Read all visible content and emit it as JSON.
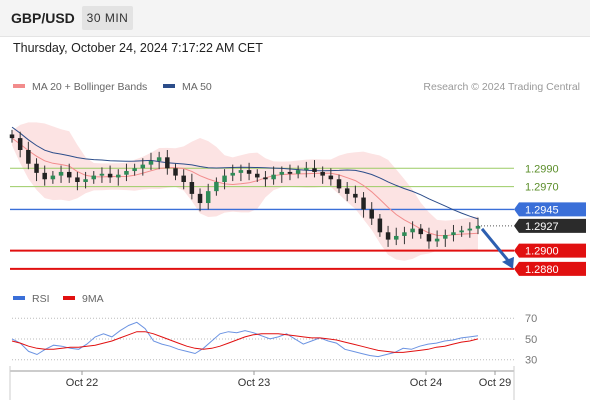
{
  "header": {
    "symbol": "GBP/USD",
    "timeframe": "30 MIN",
    "datetime": "Thursday, October 24, 2024 7:17:22 AM CET"
  },
  "chart_data": [
    {
      "type": "candlestick",
      "legend": [
        {
          "label": "MA 20 + Bollinger Bands",
          "color": "#f28c8c"
        },
        {
          "label": "MA 50",
          "color": "#2c4d8a"
        }
      ],
      "watermark": "Research © 2024 Trading Central",
      "ylim": [
        1.287,
        1.3045
      ],
      "x_ticks": [
        "Oct 22",
        "Oct 23",
        "Oct 24",
        "Oct 29"
      ],
      "horizontal_levels": [
        {
          "value": 1.299,
          "label": "1.2990",
          "color": "#9ccc65",
          "style": "green-line"
        },
        {
          "value": 1.297,
          "label": "1.2970",
          "color": "#9ccc65",
          "style": "green-line"
        },
        {
          "value": 1.2945,
          "label": "1.2945",
          "color": "#3a6fd8",
          "style": "blue-box"
        },
        {
          "value": 1.2927,
          "label": "1.2927",
          "color": "#2b2b2b",
          "style": "last-price"
        },
        {
          "value": 1.29,
          "label": "1.2900",
          "color": "#e11010",
          "style": "red-box"
        },
        {
          "value": 1.288,
          "label": "1.2880",
          "color": "#e11010",
          "style": "red-box"
        }
      ],
      "close_series": [
        1.3023,
        1.301,
        1.2995,
        1.2985,
        1.2978,
        1.2982,
        1.2986,
        1.298,
        1.2975,
        1.2978,
        1.2982,
        1.2984,
        1.298,
        1.2983,
        1.2987,
        1.299,
        1.2994,
        1.2998,
        1.3002,
        1.299,
        1.2982,
        1.2975,
        1.2962,
        1.2952,
        1.2965,
        1.2975,
        1.2982,
        1.2985,
        1.2988,
        1.2984,
        1.298,
        1.2978,
        1.2983,
        1.2986,
        1.2984,
        1.2988,
        1.299,
        1.2986,
        1.2982,
        1.2978,
        1.2968,
        1.2962,
        1.2958,
        1.2945,
        1.2935,
        1.292,
        1.2912,
        1.2916,
        1.292,
        1.2924,
        1.2918,
        1.291,
        1.2913,
        1.2917,
        1.292,
        1.2922,
        1.2924,
        1.2927
      ],
      "forecast_arrow": {
        "from": 1.2927,
        "to": 1.288
      }
    },
    {
      "type": "line",
      "title": "RSI",
      "legend": [
        {
          "label": "RSI",
          "color": "#3a6fd8"
        },
        {
          "label": "9MA",
          "color": "#e11010"
        }
      ],
      "ylim": [
        22,
        75
      ],
      "y_ticks": [
        "70",
        "50",
        "30"
      ],
      "series": [
        {
          "name": "RSI",
          "values": [
            50,
            46,
            38,
            35,
            40,
            44,
            43,
            41,
            40,
            45,
            52,
            55,
            52,
            58,
            63,
            66,
            60,
            48,
            45,
            43,
            40,
            38,
            36,
            41,
            48,
            55,
            57,
            56,
            58,
            56,
            53,
            50,
            52,
            55,
            50,
            45,
            48,
            51,
            48,
            46,
            40,
            38,
            36,
            34,
            33,
            35,
            37,
            41,
            40,
            43,
            45,
            46,
            48,
            49,
            51,
            52,
            53
          ]
        },
        {
          "name": "9MA",
          "values": [
            48,
            46,
            43,
            41,
            40,
            40,
            41,
            42,
            42,
            43,
            44,
            46,
            48,
            51,
            54,
            57,
            57,
            55,
            52,
            49,
            46,
            43,
            41,
            40,
            41,
            43,
            46,
            49,
            52,
            54,
            55,
            55,
            55,
            54,
            53,
            52,
            51,
            51,
            50,
            49,
            47,
            45,
            43,
            41,
            39,
            38,
            37,
            37,
            38,
            39,
            40,
            42,
            43,
            45,
            47,
            48,
            50
          ]
        }
      ]
    }
  ]
}
